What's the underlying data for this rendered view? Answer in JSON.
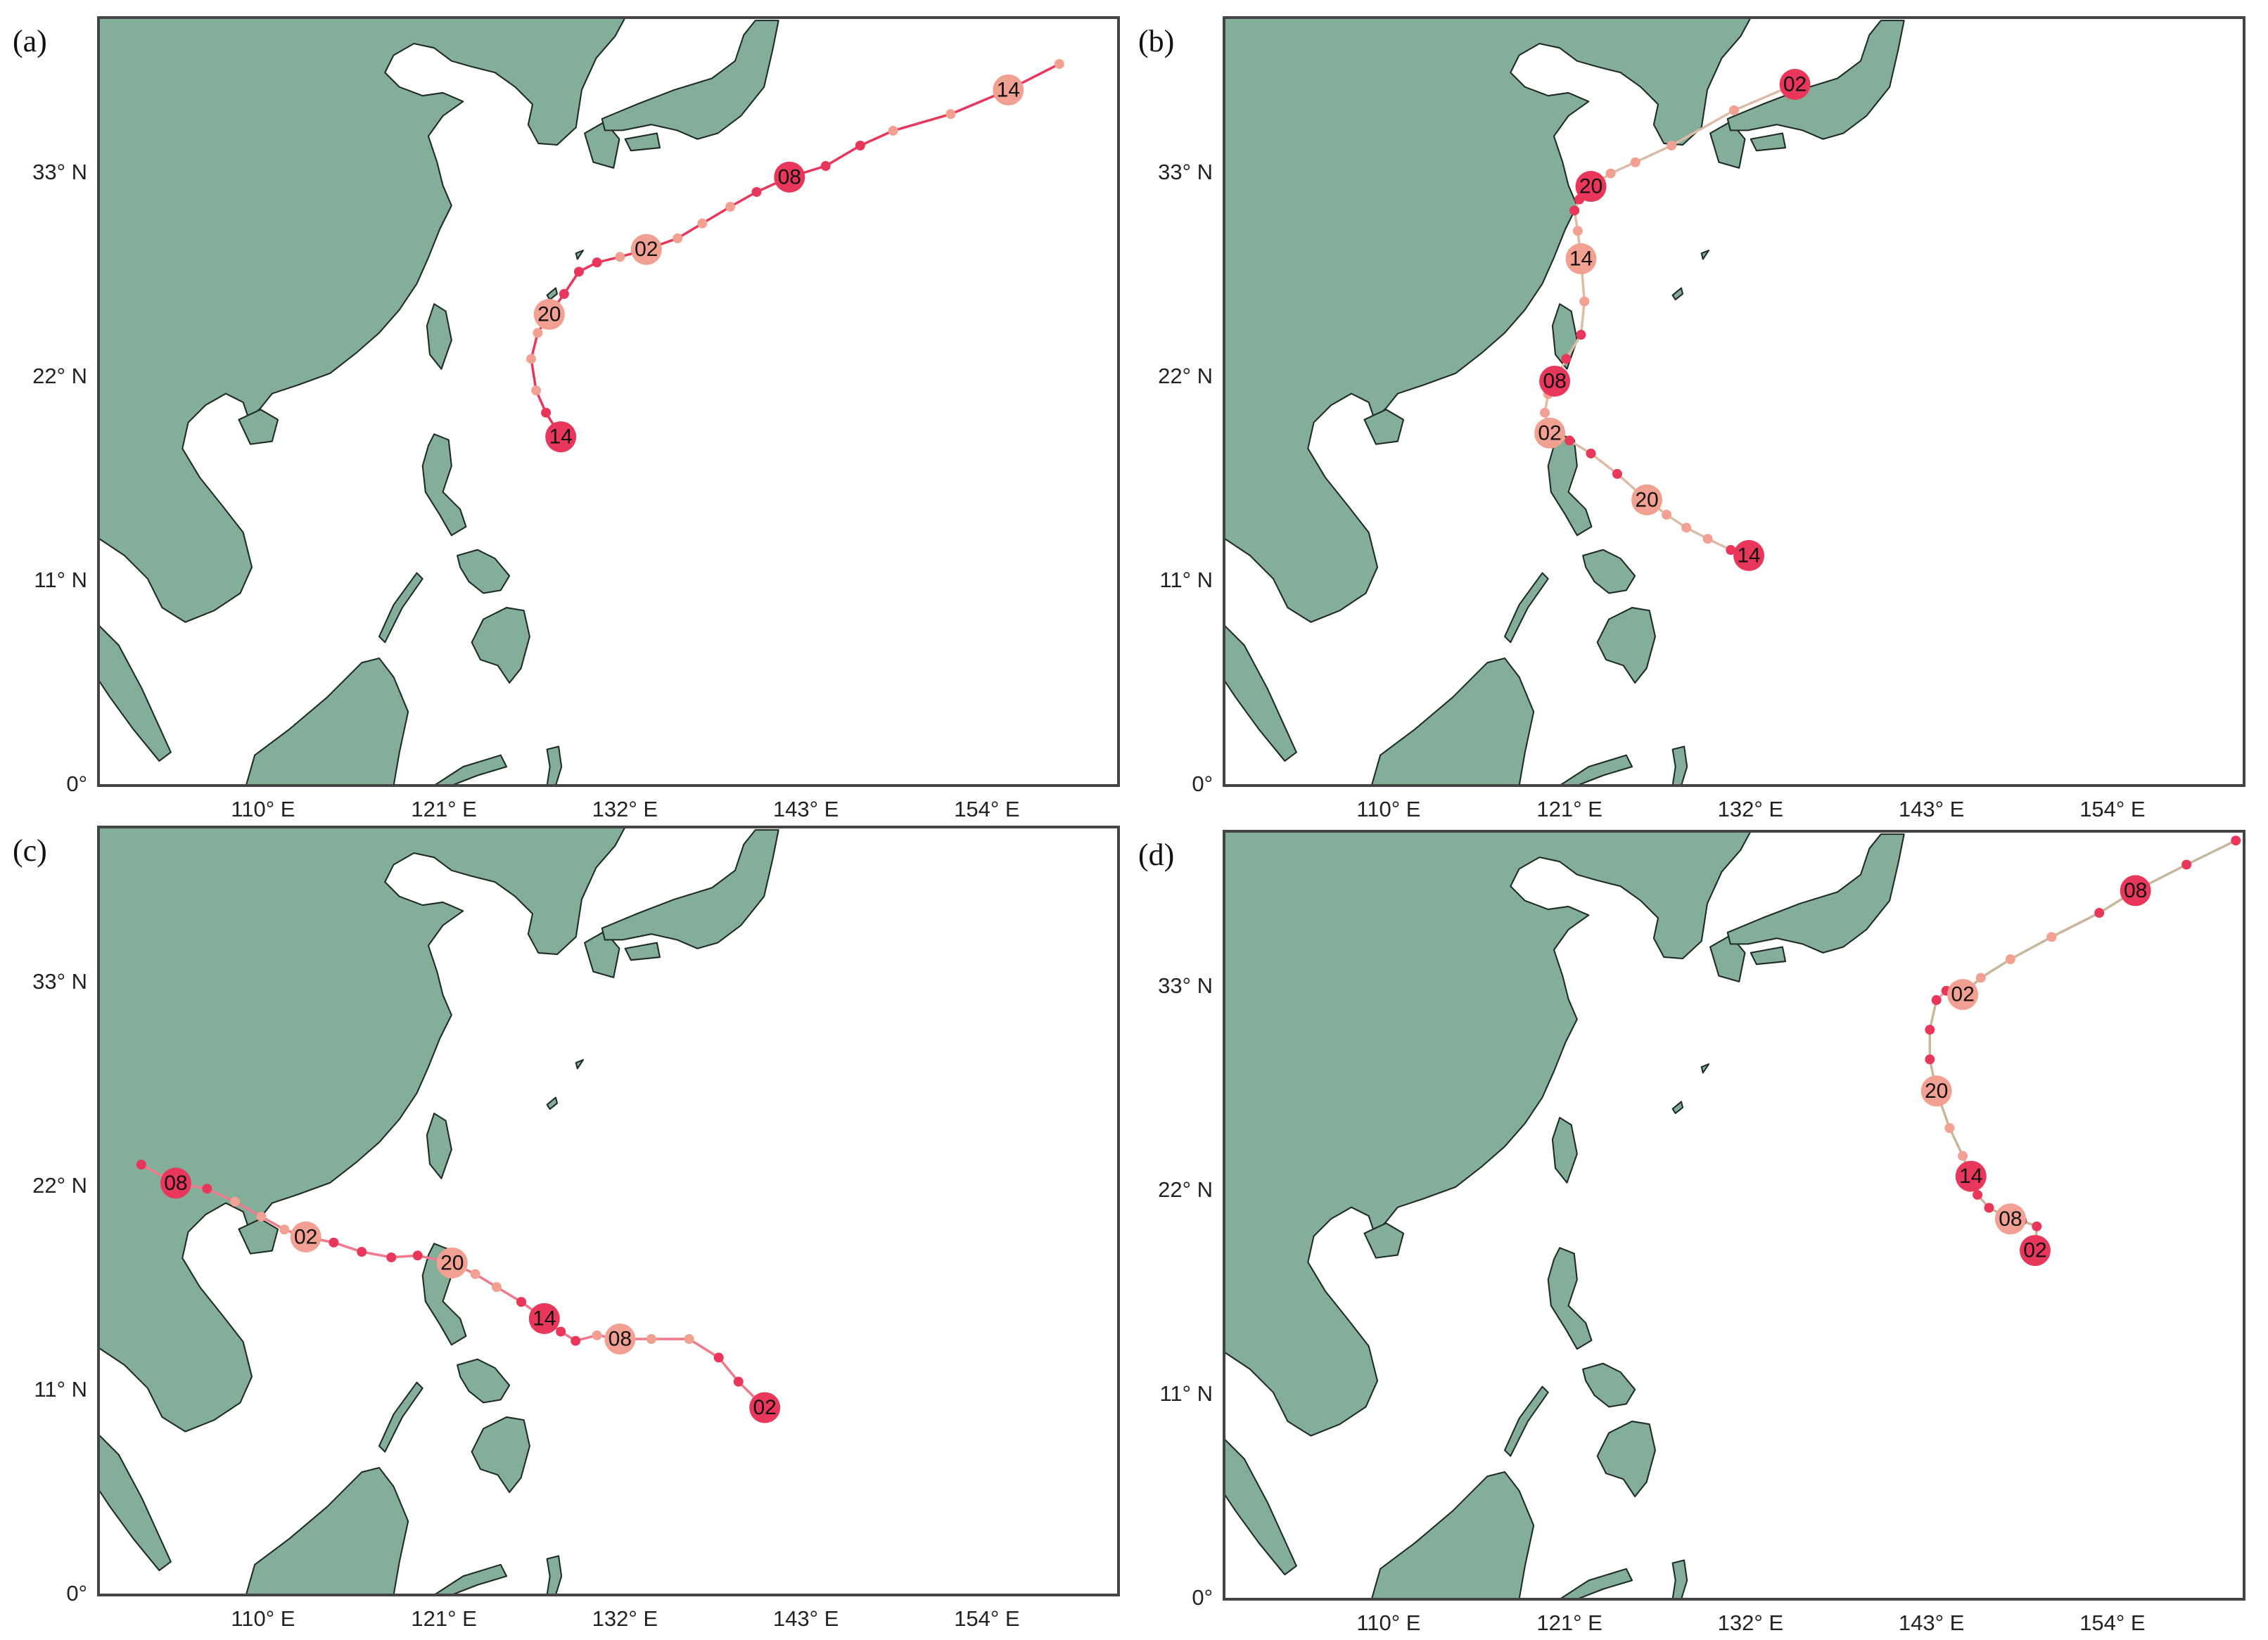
{
  "chart_data": [
    {
      "type": "track_map",
      "label": "(a)",
      "xlim": [
        100,
        162
      ],
      "ylim": [
        0,
        41.4
      ],
      "xticks": [
        {
          "value": 110,
          "label": "110° E"
        },
        {
          "value": 121,
          "label": "121° E"
        },
        {
          "value": 132,
          "label": "132° E"
        },
        {
          "value": 143,
          "label": "143° E"
        },
        {
          "value": 154,
          "label": "154° E"
        }
      ],
      "yticks": [
        {
          "value": 0,
          "label": "0°"
        },
        {
          "value": 11,
          "label": "11° N"
        },
        {
          "value": 22,
          "label": "22° N"
        },
        {
          "value": 33,
          "label": "33° N"
        }
      ],
      "line_color": "#e8375a",
      "x": [
        128.1,
        127.2,
        126.6,
        126.3,
        126.7,
        127.4,
        128.3,
        129.2,
        130.3,
        131.7,
        133.3,
        135.2,
        136.7,
        138.4,
        140.0,
        142.0,
        144.2,
        146.3,
        148.3,
        151.8,
        155.3,
        158.4
      ],
      "y": [
        18.8,
        20.1,
        21.3,
        23.0,
        24.4,
        25.4,
        26.5,
        27.7,
        28.2,
        28.5,
        28.9,
        29.5,
        30.3,
        31.2,
        32.0,
        32.8,
        33.4,
        34.5,
        35.3,
        36.2,
        37.5,
        38.9
      ],
      "point_labels": [
        "14",
        null,
        null,
        null,
        null,
        "20",
        null,
        null,
        null,
        null,
        "02",
        null,
        null,
        null,
        null,
        "08",
        null,
        null,
        null,
        null,
        "14",
        null
      ],
      "point_colors": [
        "#e8375a",
        "#e8375a",
        "#f2a091",
        "#f2a091",
        "#f2a091",
        "#f2a091",
        "#e8375a",
        "#e8375a",
        "#e8375a",
        "#f2a091",
        "#f2a091",
        "#f2a091",
        "#f2a091",
        "#f2a091",
        "#e8375a",
        "#e8375a",
        "#e8375a",
        "#e8375a",
        "#f2a091",
        "#f2a091",
        "#f2a091",
        "#f2a091"
      ]
    },
    {
      "type": "track_map",
      "label": "(b)",
      "xlim": [
        100,
        162
      ],
      "ylim": [
        0,
        41.4
      ],
      "xticks": [
        {
          "value": 110,
          "label": "110° E"
        },
        {
          "value": 121,
          "label": "121° E"
        },
        {
          "value": 132,
          "label": "132° E"
        },
        {
          "value": 143,
          "label": "143° E"
        },
        {
          "value": 154,
          "label": "154° E"
        }
      ],
      "yticks": [
        {
          "value": 0,
          "label": "0°"
        },
        {
          "value": 11,
          "label": "11° N"
        },
        {
          "value": 22,
          "label": "22° N"
        },
        {
          "value": 33,
          "label": "33° N"
        }
      ],
      "line_color": "#dcbca4",
      "x": [
        131.9,
        130.8,
        129.4,
        128.1,
        126.9,
        125.7,
        123.9,
        122.3,
        121.0,
        119.8,
        119.5,
        119.7,
        120.1,
        120.8,
        121.7,
        121.9,
        121.7,
        121.5,
        121.3,
        121.6,
        122.3,
        123.5,
        125.0,
        127.2,
        131.0,
        134.7
      ],
      "y": [
        12.4,
        12.7,
        13.3,
        13.9,
        14.6,
        15.4,
        16.8,
        17.9,
        18.6,
        19.0,
        20.1,
        21.1,
        21.8,
        23.0,
        24.3,
        26.1,
        28.4,
        29.9,
        31.0,
        31.6,
        32.3,
        33.0,
        33.6,
        34.5,
        36.4,
        37.8
      ],
      "point_labels": [
        "14",
        null,
        null,
        null,
        null,
        "20",
        null,
        null,
        null,
        "02",
        null,
        null,
        "08",
        null,
        null,
        null,
        "14",
        null,
        null,
        null,
        "20",
        null,
        null,
        null,
        null,
        "02"
      ],
      "point_colors": [
        "#e8375a",
        "#e8375a",
        "#f2a091",
        "#f2a091",
        "#f2a091",
        "#f2a091",
        "#e8375a",
        "#e8375a",
        "#e8375a",
        "#f2a091",
        "#f2a091",
        "#f2a091",
        "#e8375a",
        "#e8375a",
        "#e8375a",
        "#f2a091",
        "#f2a091",
        "#f2a091",
        "#e8375a",
        "#e8375a",
        "#e8375a",
        "#f2a091",
        "#f2a091",
        "#f2a091",
        "#f2a091",
        "#e8375a"
      ]
    },
    {
      "type": "track_map",
      "label": "(c)",
      "xlim": [
        100,
        162
      ],
      "ylim": [
        0,
        41.4
      ],
      "xticks": [
        {
          "value": 110,
          "label": "110° E"
        },
        {
          "value": 121,
          "label": "121° E"
        },
        {
          "value": 132,
          "label": "132° E"
        },
        {
          "value": 143,
          "label": "143° E"
        },
        {
          "value": 154,
          "label": "154° E"
        }
      ],
      "yticks": [
        {
          "value": 0,
          "label": "0°"
        },
        {
          "value": 11,
          "label": "11° N"
        },
        {
          "value": 22,
          "label": "22° N"
        },
        {
          "value": 33,
          "label": "33° N"
        }
      ],
      "line_color": "#f07a8a",
      "x": [
        140.5,
        138.9,
        137.7,
        135.9,
        133.6,
        131.7,
        130.3,
        129.0,
        128.1,
        127.1,
        125.7,
        124.2,
        122.9,
        121.5,
        119.4,
        117.8,
        116.0,
        114.3,
        112.6,
        111.3,
        109.9,
        108.3,
        106.6,
        104.7,
        102.6
      ],
      "y": [
        10.1,
        11.5,
        12.8,
        13.8,
        13.8,
        13.8,
        14.0,
        13.7,
        14.2,
        14.9,
        15.8,
        16.6,
        17.3,
        17.9,
        18.3,
        18.2,
        18.5,
        19.0,
        19.3,
        19.7,
        20.4,
        21.2,
        21.9,
        22.2,
        23.2
      ],
      "point_labels": [
        "02",
        null,
        null,
        null,
        null,
        "08",
        null,
        null,
        null,
        "14",
        null,
        null,
        null,
        "20",
        null,
        null,
        null,
        null,
        "02",
        null,
        null,
        null,
        null,
        "08",
        null
      ],
      "point_colors": [
        "#e8375a",
        "#e8375a",
        "#e8375a",
        "#f2a091",
        "#f2a091",
        "#f2a091",
        "#f2a091",
        "#e8375a",
        "#e8375a",
        "#e8375a",
        "#e8375a",
        "#f2a091",
        "#f2a091",
        "#f2a091",
        "#e8375a",
        "#e8375a",
        "#e8375a",
        "#e8375a",
        "#f2a091",
        "#f2a091",
        "#f2a091",
        "#f2a091",
        "#e8375a",
        "#e8375a",
        "#e8375a"
      ]
    },
    {
      "type": "track_map",
      "label": "(d)",
      "xlim": [
        100,
        162
      ],
      "ylim": [
        0,
        41.4
      ],
      "xticks": [
        {
          "value": 110,
          "label": "110° E"
        },
        {
          "value": 121,
          "label": "121° E"
        },
        {
          "value": 132,
          "label": "132° E"
        },
        {
          "value": 143,
          "label": "143° E"
        },
        {
          "value": 154,
          "label": "154° E"
        }
      ],
      "yticks": [
        {
          "value": 0,
          "label": "0°"
        },
        {
          "value": 11,
          "label": "11° N"
        },
        {
          "value": 22,
          "label": "22° N"
        },
        {
          "value": 33,
          "label": "33° N"
        }
      ],
      "line_color": "#c9b79c",
      "x": [
        149.3,
        149.4,
        148.5,
        147.8,
        146.5,
        145.8,
        145.4,
        144.9,
        144.1,
        143.3,
        142.9,
        142.9,
        143.3,
        143.9,
        144.9,
        146.0,
        147.8,
        150.3,
        153.2,
        155.4,
        158.5,
        161.5
      ],
      "y": [
        18.8,
        20.1,
        20.4,
        20.5,
        21.1,
        21.8,
        22.8,
        23.9,
        25.4,
        27.4,
        29.1,
        30.7,
        32.3,
        32.8,
        32.6,
        33.5,
        34.5,
        35.7,
        37.0,
        38.2,
        39.6,
        40.9
      ],
      "point_labels": [
        "02",
        null,
        null,
        "08",
        null,
        null,
        "14",
        null,
        null,
        "20",
        null,
        null,
        null,
        null,
        "02",
        null,
        null,
        null,
        null,
        "08",
        null,
        null
      ],
      "point_colors": [
        "#e8375a",
        "#e8375a",
        "#e8375a",
        "#f2a091",
        "#e8375a",
        "#e8375a",
        "#e8375a",
        "#f2a091",
        "#f2a091",
        "#f2a091",
        "#e8375a",
        "#e8375a",
        "#e8375a",
        "#e8375a",
        "#f2a091",
        "#f2a091",
        "#f2a091",
        "#f2a091",
        "#e8375a",
        "#e8375a",
        "#e8375a",
        "#e8375a"
      ]
    }
  ]
}
